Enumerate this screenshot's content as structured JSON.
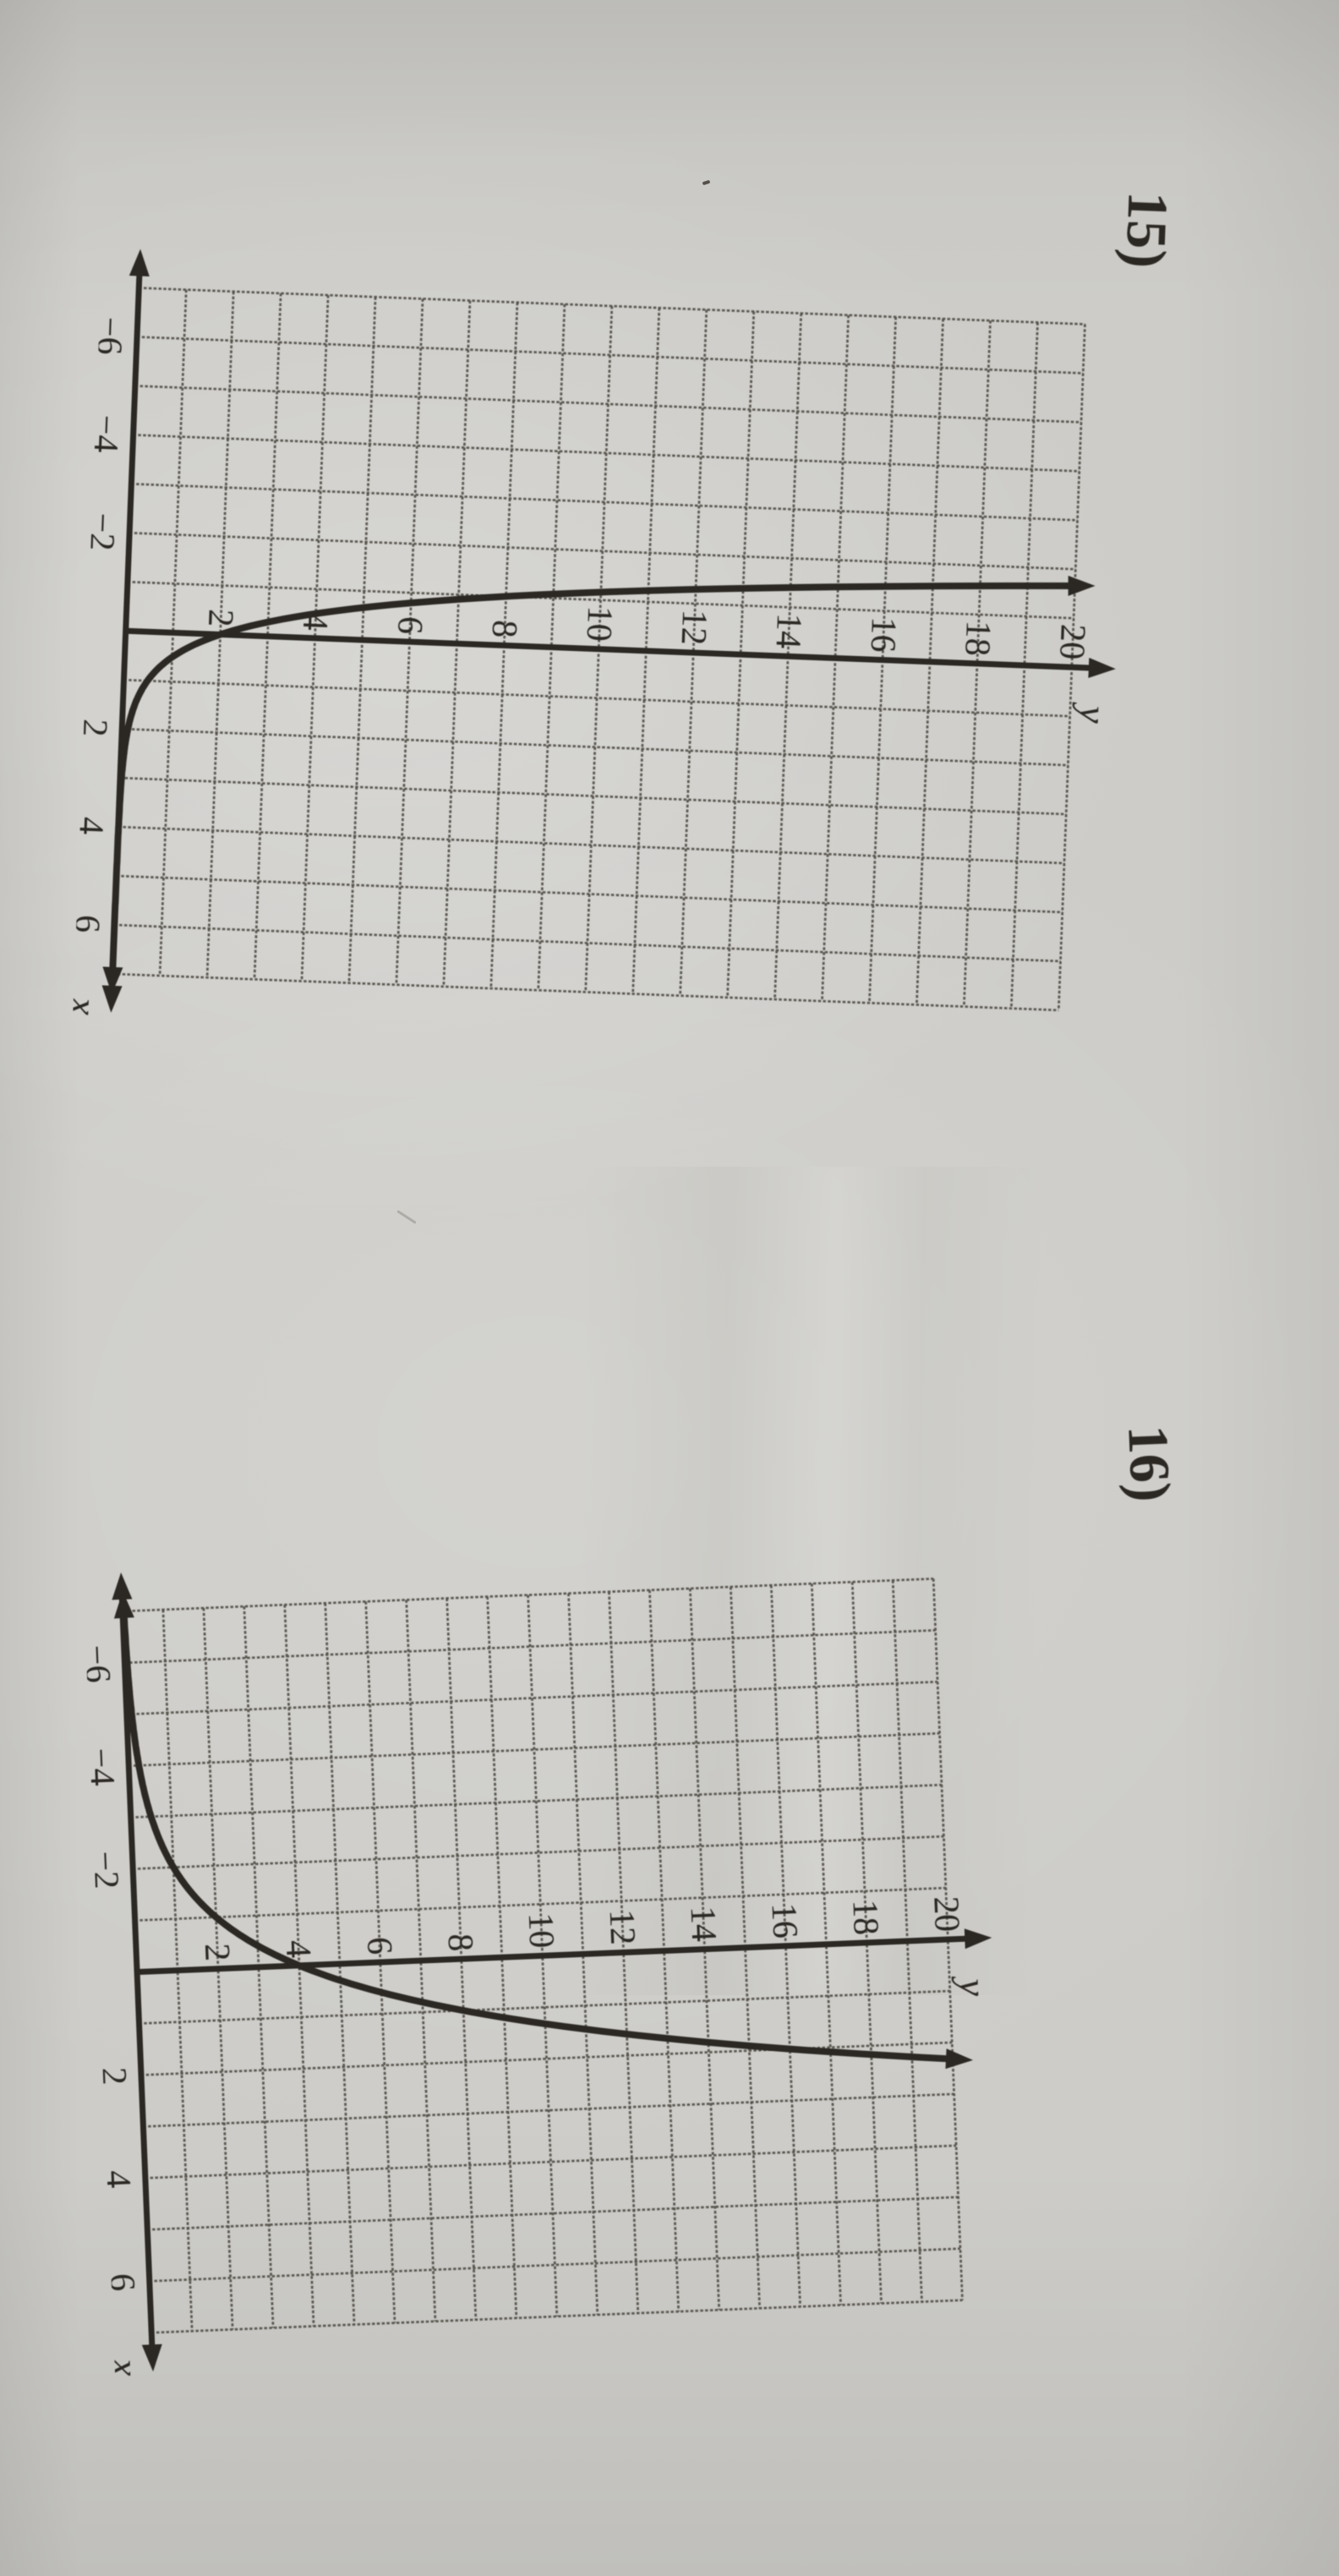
{
  "page": {
    "paper_color": "#cdccc8",
    "ink_color": "#2b2823",
    "grid_color": "#55524b"
  },
  "problems": [
    {
      "number_label": "15)",
      "chart_data": {
        "type": "line",
        "title": "",
        "xlabel": "x",
        "ylabel": "y",
        "xlim": [
          -7,
          7
        ],
        "ylim": [
          0,
          20
        ],
        "grid": true,
        "grid_step": 1,
        "x_tick_values": [
          -6,
          -4,
          -2,
          2,
          4,
          6
        ],
        "x_tick_labels": [
          "−6",
          "−4",
          "−2",
          "2",
          "4",
          "6"
        ],
        "y_tick_values": [
          2,
          4,
          6,
          8,
          10,
          12,
          14,
          16,
          18,
          20
        ],
        "y_tick_labels": [
          "2",
          "4",
          "6",
          "8",
          "10",
          "12",
          "14",
          "16",
          "18",
          "20"
        ],
        "series": [
          {
            "name": "exponential decay curve",
            "model": "y = a*b^x",
            "a": 2,
            "b": 0.25,
            "x_domain": [
              -1.661,
              7
            ],
            "points": [
              [
                -1.66,
                20
              ],
              [
                -1.5,
                16
              ],
              [
                -1,
                8
              ],
              [
                -0.5,
                4
              ],
              [
                0,
                2
              ],
              [
                0.5,
                1
              ],
              [
                1,
                0.5
              ],
              [
                2,
                0.125
              ],
              [
                4,
                0.0078
              ],
              [
                7,
                0.0001
              ]
            ],
            "horizontal_asymptote": 0,
            "end_arrows": true
          }
        ]
      }
    },
    {
      "number_label": "16)",
      "chart_data": {
        "type": "line",
        "title": "",
        "xlabel": "x",
        "ylabel": "y",
        "xlim": [
          -7,
          7
        ],
        "ylim": [
          0,
          20
        ],
        "grid": true,
        "grid_step": 1,
        "x_tick_values": [
          -6,
          -4,
          -2,
          2,
          4,
          6
        ],
        "x_tick_labels": [
          "−6",
          "−4",
          "−2",
          "2",
          "4",
          "6"
        ],
        "y_tick_values": [
          2,
          4,
          6,
          8,
          10,
          12,
          14,
          16,
          18,
          20
        ],
        "y_tick_labels": [
          "2",
          "4",
          "6",
          "8",
          "10",
          "12",
          "14",
          "16",
          "18",
          "20"
        ],
        "series": [
          {
            "name": "exponential growth curve",
            "model": "y = a*b^x",
            "a": 4,
            "b": 2,
            "x_domain": [
              -7,
              2.322
            ],
            "points": [
              [
                -7,
                0.03
              ],
              [
                -4,
                0.25
              ],
              [
                -2,
                1
              ],
              [
                -1,
                2
              ],
              [
                0,
                4
              ],
              [
                1,
                8
              ],
              [
                2,
                16
              ],
              [
                2.32,
                20
              ]
            ],
            "horizontal_asymptote": 0,
            "end_arrows": true
          }
        ]
      }
    }
  ]
}
